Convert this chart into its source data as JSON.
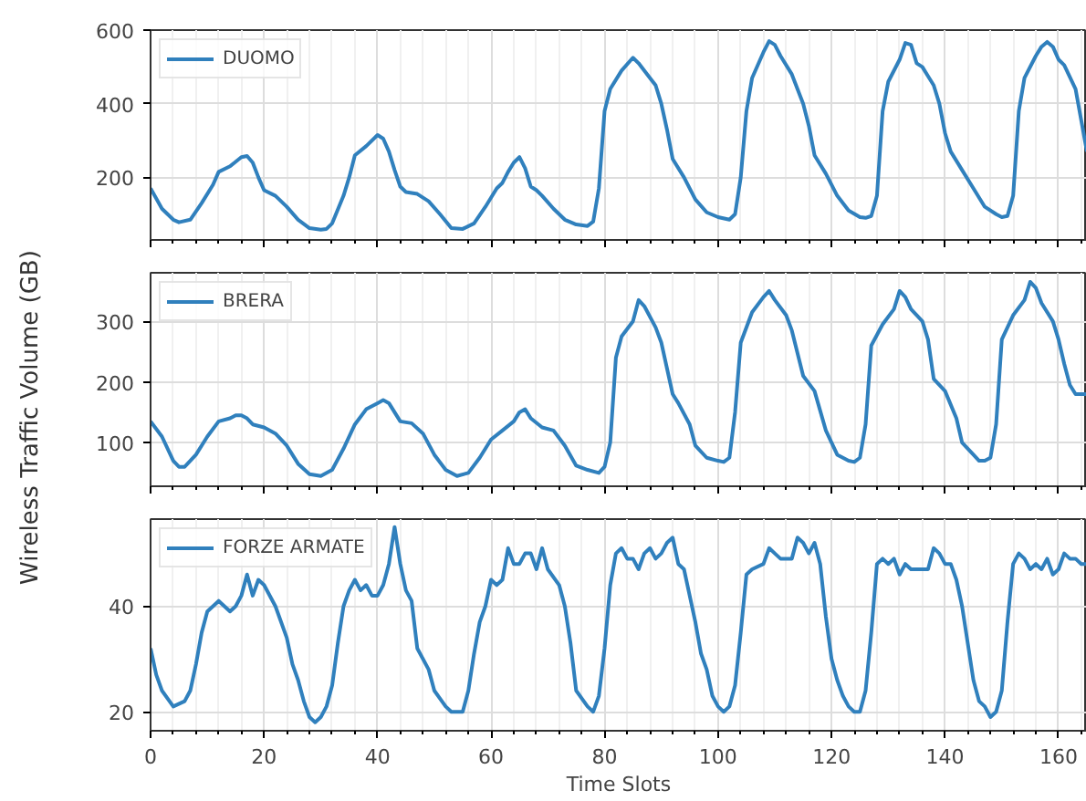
{
  "chart_data": [
    {
      "type": "line",
      "xlim": [
        0,
        165
      ],
      "xticks": [
        0,
        20,
        40,
        60,
        80,
        100,
        120,
        140,
        160
      ],
      "ylim": [
        30,
        600
      ],
      "yticks": [
        200,
        400,
        600
      ],
      "grid": true,
      "legend": "top left",
      "tick_labels": "y",
      "line_style": "solid",
      "series": [
        {
          "name": "DUOMO",
          "color": "#3080bd",
          "x": [
            0,
            2,
            4,
            5,
            7,
            9,
            11,
            12,
            14,
            16,
            17,
            18,
            19,
            20,
            22,
            24,
            26,
            28,
            30,
            31,
            32,
            34,
            35,
            36,
            38,
            40,
            41,
            42,
            43,
            44,
            45,
            47,
            49,
            51,
            53,
            55,
            57,
            59,
            61,
            62,
            63,
            64,
            65,
            66,
            67,
            68,
            69,
            71,
            73,
            75,
            77,
            78,
            79,
            80,
            81,
            83,
            85,
            86,
            88,
            89,
            90,
            91,
            92,
            94,
            96,
            98,
            100,
            102,
            103,
            104,
            105,
            106,
            108,
            109,
            110,
            111,
            113,
            115,
            116,
            117,
            119,
            121,
            123,
            125,
            126,
            127,
            128,
            129,
            130,
            132,
            133,
            134,
            135,
            136,
            138,
            139,
            140,
            141,
            143,
            145,
            147,
            149,
            150,
            151,
            152,
            153,
            154,
            156,
            157,
            158,
            159,
            160,
            161,
            163,
            165
          ],
          "values": [
            170,
            115,
            85,
            78,
            85,
            130,
            180,
            215,
            230,
            255,
            258,
            240,
            200,
            165,
            150,
            120,
            85,
            62,
            58,
            60,
            75,
            150,
            200,
            260,
            285,
            315,
            305,
            270,
            220,
            175,
            160,
            155,
            135,
            100,
            62,
            60,
            75,
            120,
            170,
            185,
            215,
            240,
            255,
            225,
            175,
            165,
            150,
            115,
            85,
            72,
            68,
            80,
            170,
            380,
            440,
            490,
            525,
            510,
            470,
            450,
            400,
            330,
            250,
            200,
            140,
            105,
            92,
            85,
            100,
            200,
            380,
            470,
            540,
            570,
            560,
            530,
            480,
            400,
            340,
            260,
            210,
            150,
            110,
            92,
            90,
            95,
            150,
            380,
            460,
            520,
            565,
            560,
            510,
            500,
            450,
            400,
            320,
            270,
            220,
            170,
            120,
            100,
            92,
            95,
            150,
            380,
            470,
            530,
            555,
            568,
            555,
            520,
            505,
            440,
            270
          ]
        }
      ]
    },
    {
      "type": "line",
      "xlim": [
        0,
        165
      ],
      "xticks": [
        0,
        20,
        40,
        60,
        80,
        100,
        120,
        140,
        160
      ],
      "ylim": [
        28,
        380
      ],
      "yticks": [
        100,
        200,
        300
      ],
      "grid": true,
      "legend": "top left",
      "tick_labels": "y",
      "line_style": "solid",
      "ylabel": "Wireless Traffic Volume (GB)",
      "series": [
        {
          "name": "BRERA",
          "color": "#3080bd",
          "x": [
            0,
            2,
            4,
            5,
            6,
            8,
            10,
            12,
            14,
            15,
            16,
            17,
            18,
            20,
            22,
            24,
            26,
            28,
            30,
            32,
            34,
            36,
            38,
            40,
            41,
            42,
            43,
            44,
            46,
            48,
            50,
            52,
            54,
            56,
            58,
            60,
            62,
            64,
            65,
            66,
            67,
            69,
            71,
            73,
            75,
            77,
            79,
            80,
            81,
            82,
            83,
            85,
            86,
            87,
            89,
            90,
            92,
            93,
            95,
            96,
            98,
            100,
            101,
            102,
            103,
            104,
            106,
            108,
            109,
            110,
            112,
            113,
            115,
            117,
            119,
            121,
            123,
            124,
            125,
            126,
            127,
            129,
            131,
            132,
            133,
            134,
            136,
            137,
            138,
            140,
            142,
            143,
            145,
            146,
            147,
            148,
            149,
            150,
            152,
            154,
            155,
            156,
            157,
            159,
            160,
            161,
            162,
            163,
            165
          ],
          "values": [
            135,
            110,
            70,
            60,
            60,
            80,
            110,
            135,
            140,
            145,
            145,
            140,
            130,
            125,
            115,
            95,
            65,
            48,
            45,
            55,
            90,
            130,
            155,
            165,
            170,
            165,
            150,
            135,
            132,
            115,
            80,
            55,
            45,
            50,
            75,
            105,
            120,
            135,
            150,
            155,
            140,
            125,
            120,
            95,
            62,
            55,
            50,
            60,
            100,
            240,
            275,
            300,
            335,
            325,
            290,
            265,
            180,
            165,
            130,
            95,
            75,
            70,
            68,
            75,
            150,
            265,
            315,
            340,
            350,
            335,
            310,
            285,
            210,
            185,
            120,
            80,
            70,
            68,
            75,
            130,
            260,
            295,
            320,
            350,
            340,
            320,
            300,
            270,
            205,
            185,
            140,
            100,
            80,
            70,
            70,
            75,
            130,
            270,
            310,
            335,
            365,
            355,
            330,
            300,
            270,
            230,
            195,
            180,
            180
          ]
        }
      ]
    },
    {
      "type": "line",
      "xlim": [
        0,
        165
      ],
      "xticks": [
        0,
        20,
        40,
        60,
        80,
        100,
        120,
        140,
        160
      ],
      "ylim": [
        16.4,
        56.5
      ],
      "yticks": [
        20,
        40
      ],
      "grid": true,
      "legend": "top left",
      "line_style": "solid",
      "xlabel": "Time Slots",
      "series": [
        {
          "name": "FORZE ARMATE",
          "color": "#3080bd",
          "x": [
            0,
            1,
            2,
            4,
            6,
            7,
            8,
            9,
            10,
            12,
            13,
            14,
            15,
            16,
            17,
            18,
            19,
            20,
            22,
            24,
            25,
            26,
            27,
            28,
            29,
            30,
            31,
            32,
            33,
            34,
            35,
            36,
            37,
            38,
            39,
            40,
            41,
            42,
            43,
            44,
            45,
            46,
            47,
            49,
            50,
            52,
            53,
            55,
            56,
            57,
            58,
            59,
            60,
            61,
            62,
            63,
            64,
            65,
            66,
            67,
            68,
            69,
            70,
            72,
            73,
            74,
            75,
            77,
            78,
            79,
            80,
            81,
            82,
            83,
            84,
            85,
            86,
            87,
            88,
            89,
            90,
            91,
            92,
            93,
            94,
            95,
            96,
            97,
            98,
            99,
            100,
            101,
            102,
            103,
            104,
            105,
            106,
            108,
            109,
            110,
            111,
            113,
            114,
            115,
            116,
            117,
            118,
            119,
            120,
            121,
            122,
            123,
            124,
            125,
            126,
            127,
            128,
            129,
            130,
            131,
            132,
            133,
            134,
            136,
            137,
            138,
            139,
            140,
            141,
            142,
            143,
            144,
            145,
            146,
            147,
            148,
            149,
            150,
            151,
            152,
            153,
            154,
            155,
            156,
            157,
            158,
            159,
            160,
            161,
            162,
            163,
            164,
            165
          ],
          "values": [
            32,
            27,
            24,
            21,
            22,
            24,
            29,
            35,
            39,
            41,
            40,
            39,
            40,
            42,
            46,
            42,
            45,
            44,
            40,
            34,
            29,
            26,
            22,
            19,
            18,
            19,
            21,
            25,
            33,
            40,
            43,
            45,
            43,
            44,
            42,
            42,
            44,
            48,
            55,
            48,
            43,
            41,
            32,
            28,
            24,
            21,
            20,
            20,
            24,
            31,
            37,
            40,
            45,
            44,
            45,
            51,
            48,
            48,
            50,
            50,
            47,
            51,
            47,
            44,
            40,
            33,
            24,
            21,
            20,
            23,
            32,
            44,
            50,
            51,
            49,
            49,
            47,
            50,
            51,
            49,
            50,
            52,
            53,
            48,
            47,
            42,
            37,
            31,
            28,
            23,
            21,
            20,
            21,
            25,
            35,
            46,
            47,
            48,
            51,
            50,
            49,
            49,
            53,
            52,
            50,
            52,
            48,
            38,
            30,
            26,
            23,
            21,
            20,
            20,
            24,
            35,
            48,
            49,
            48,
            49,
            46,
            48,
            47,
            47,
            47,
            51,
            50,
            48,
            48,
            45,
            40,
            33,
            26,
            22,
            21,
            19,
            20,
            24,
            37,
            48,
            50,
            49,
            47,
            48,
            47,
            49,
            46,
            47,
            50,
            49,
            49,
            48,
            48
          ]
        }
      ]
    }
  ]
}
